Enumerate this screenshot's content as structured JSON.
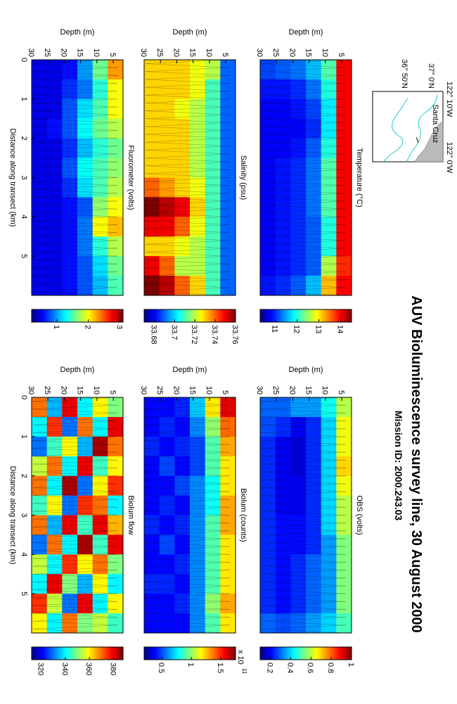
{
  "title": "AUV Bioluminescence survey line, 30 August 2000",
  "subtitle": "Mission ID: 2000.243.03",
  "map": {
    "lon_labels": [
      "122° 10'W",
      "122° 0'W"
    ],
    "lat_labels": [
      "37° 0'N",
      "36° 50'N"
    ],
    "place": "Santa Cruz"
  },
  "chart_data": [
    {
      "type": "heatmap",
      "title": "Temperature (°C)",
      "ylabel": "Depth (m)",
      "xlim": [
        0,
        6
      ],
      "ylim": [
        2,
        30
      ],
      "yticks": [
        5,
        10,
        15,
        20,
        25,
        30
      ],
      "colormap": "jet",
      "clim": [
        10.3,
        14.5
      ],
      "cticks": [
        11,
        12,
        13,
        14
      ],
      "z": [
        [
          14,
          14,
          14,
          14,
          14,
          14,
          14,
          14,
          14,
          14,
          13.8,
          14
        ],
        [
          12.2,
          12,
          11.8,
          11.8,
          12,
          12.2,
          12.2,
          12.2,
          12,
          12,
          12.6,
          13.2
        ],
        [
          11.6,
          11.3,
          11.1,
          11,
          11.2,
          11.3,
          11.3,
          11.3,
          11.2,
          11.2,
          11.2,
          11.6
        ],
        [
          11.3,
          11,
          10.9,
          10.8,
          10.9,
          11,
          11,
          11,
          11,
          11,
          11,
          11.2
        ],
        [
          11.2,
          10.9,
          10.8,
          10.8,
          10.8,
          10.9,
          10.9,
          10.9,
          10.9,
          10.9,
          10.9,
          11
        ],
        [
          11.1,
          10.9,
          10.8,
          10.8,
          10.8,
          10.8,
          10.8,
          10.8,
          10.8,
          10.8,
          10.8,
          10.9
        ]
      ]
    },
    {
      "type": "heatmap",
      "title": "OBS (volts)",
      "ylabel": "Depth (m)",
      "xlim": [
        0,
        6
      ],
      "ylim": [
        2,
        30
      ],
      "yticks": [
        5,
        10,
        15,
        20,
        25,
        30
      ],
      "colormap": "jet",
      "clim": [
        0.1,
        1
      ],
      "cticks": [
        0.2,
        0.4,
        0.6,
        0.8,
        1
      ],
      "z": [
        [
          0.6,
          0.65,
          0.65,
          0.7,
          0.65,
          0.6,
          0.6,
          0.55,
          0.55,
          0.55,
          0.55,
          0.5
        ],
        [
          0.45,
          0.4,
          0.4,
          0.4,
          0.4,
          0.4,
          0.4,
          0.35,
          0.35,
          0.35,
          0.35,
          0.4
        ],
        [
          0.35,
          0.25,
          0.25,
          0.25,
          0.25,
          0.25,
          0.25,
          0.25,
          0.3,
          0.3,
          0.3,
          0.35
        ],
        [
          0.35,
          0.2,
          0.18,
          0.18,
          0.2,
          0.2,
          0.22,
          0.22,
          0.25,
          0.25,
          0.25,
          0.3
        ],
        [
          0.3,
          0.25,
          0.2,
          0.2,
          0.2,
          0.2,
          0.22,
          0.22,
          0.22,
          0.22,
          0.22,
          0.28
        ],
        [
          0.3,
          0.28,
          0.25,
          0.25,
          0.25,
          0.25,
          0.25,
          0.25,
          0.25,
          0.25,
          0.25,
          0.3
        ]
      ]
    },
    {
      "type": "heatmap",
      "title": "Salinity (psu)",
      "ylabel": "Depth (m)",
      "xlim": [
        0,
        6
      ],
      "ylim": [
        2,
        30
      ],
      "yticks": [
        5,
        10,
        15,
        20,
        25,
        30
      ],
      "colormap": "jet",
      "clim": [
        33.67,
        33.76
      ],
      "cticks": [
        33.68,
        33.7,
        33.72,
        33.74,
        33.76
      ],
      "z": [
        [
          33.69,
          33.69,
          33.69,
          33.69,
          33.69,
          33.69,
          33.69,
          33.69,
          33.69,
          33.69,
          33.69,
          33.69
        ],
        [
          33.72,
          33.71,
          33.71,
          33.71,
          33.71,
          33.71,
          33.71,
          33.71,
          33.71,
          33.71,
          33.71,
          33.71
        ],
        [
          33.725,
          33.725,
          33.72,
          33.72,
          33.72,
          33.72,
          33.725,
          33.73,
          33.725,
          33.72,
          33.72,
          33.73
        ],
        [
          33.73,
          33.73,
          33.725,
          33.73,
          33.73,
          33.73,
          33.73,
          33.75,
          33.74,
          33.725,
          33.72,
          33.74
        ],
        [
          33.73,
          33.73,
          33.73,
          33.73,
          33.73,
          33.73,
          33.735,
          33.755,
          33.75,
          33.73,
          33.74,
          33.755
        ],
        [
          33.73,
          33.73,
          33.73,
          33.73,
          33.73,
          33.73,
          33.74,
          33.76,
          33.75,
          33.73,
          33.75,
          33.76
        ]
      ]
    },
    {
      "type": "heatmap",
      "title": "Biolum (counts)",
      "ylabel": "Depth (m)",
      "xlim": [
        0,
        6
      ],
      "ylim": [
        2,
        30
      ],
      "yticks": [
        5,
        10,
        15,
        20,
        25,
        30
      ],
      "colormap": "jet",
      "clim": [
        0.2,
        1.75
      ],
      "cticks": [
        0.5,
        1,
        1.5
      ],
      "cmultiplier": "x 10",
      "cexponent": "11",
      "z": [
        [
          1.6,
          1.4,
          1.3,
          1.2,
          1.2,
          1.3,
          1.3,
          1.2,
          1.2,
          1.2,
          1.3,
          1.2
        ],
        [
          1.2,
          1,
          0.9,
          0.9,
          0.8,
          0.8,
          0.9,
          0.9,
          0.9,
          0.9,
          1,
          0.9
        ],
        [
          0.7,
          0.6,
          0.5,
          0.5,
          0.6,
          0.6,
          0.6,
          0.6,
          0.6,
          0.6,
          0.6,
          0.6
        ],
        [
          0.45,
          0.4,
          0.45,
          0.4,
          0.5,
          0.4,
          0.45,
          0.4,
          0.45,
          0.4,
          0.45,
          0.4
        ],
        [
          0.4,
          0.45,
          0.4,
          0.5,
          0.4,
          0.45,
          0.4,
          0.5,
          0.4,
          0.45,
          0.4,
          0.4
        ],
        [
          0.4,
          0.4,
          0.45,
          0.4,
          0.4,
          0.4,
          0.45,
          0.4,
          0.4,
          0.45,
          0.4,
          0.4
        ]
      ]
    },
    {
      "type": "heatmap",
      "title": "Fluorometer (volts)",
      "xlabel": "Distance along transect (km)",
      "ylabel": "Depth (m)",
      "xlim": [
        0,
        6
      ],
      "ylim": [
        2,
        30
      ],
      "xticks": [
        0,
        1,
        2,
        3,
        4,
        5
      ],
      "yticks": [
        5,
        10,
        15,
        20,
        25,
        30
      ],
      "colormap": "jet",
      "clim": [
        0.2,
        3.1
      ],
      "cticks": [
        1,
        2,
        3
      ],
      "z": [
        [
          2.3,
          2,
          2,
          1.8,
          1.6,
          1.7,
          1.8,
          2,
          2.2,
          1.8,
          1.6,
          1.5
        ],
        [
          1.6,
          1.4,
          1.5,
          1.6,
          1.4,
          1.5,
          1.5,
          1.7,
          2,
          1.4,
          1.2,
          1.1
        ],
        [
          1,
          0.9,
          1.2,
          1.3,
          1.1,
          1.3,
          1.2,
          0.8,
          0.9,
          0.9,
          0.8,
          0.8
        ],
        [
          0.6,
          0.7,
          0.8,
          0.8,
          0.7,
          0.8,
          0.7,
          0.6,
          0.6,
          0.6,
          0.6,
          0.6
        ],
        [
          0.5,
          0.5,
          0.5,
          0.6,
          0.5,
          0.5,
          0.5,
          0.5,
          0.5,
          0.5,
          0.5,
          0.5
        ],
        [
          0.5,
          0.5,
          0.5,
          0.5,
          0.5,
          0.5,
          0.5,
          0.5,
          0.5,
          0.5,
          0.5,
          0.5
        ]
      ]
    },
    {
      "type": "heatmap",
      "title": "Biolum flow",
      "xlabel": "Distance along transect (km)",
      "ylabel": "Depth (m)",
      "xlim": [
        0,
        6
      ],
      "ylim": [
        2,
        30
      ],
      "xticks": [
        0,
        1,
        2,
        3,
        4,
        5
      ],
      "yticks": [
        5,
        10,
        15,
        20,
        25,
        30
      ],
      "colormap": "jet",
      "clim": [
        312,
        388
      ],
      "cticks": [
        320,
        340,
        360,
        380
      ],
      "z": [
        [
          350,
          380,
          370,
          360,
          375,
          340,
          365,
          380,
          350,
          340,
          360,
          345
        ],
        [
          360,
          340,
          385,
          345,
          360,
          370,
          380,
          345,
          370,
          360,
          340,
          355
        ],
        [
          340,
          370,
          335,
          380,
          330,
          375,
          345,
          385,
          360,
          335,
          380,
          350
        ],
        [
          380,
          330,
          360,
          340,
          385,
          330,
          380,
          340,
          375,
          350,
          330,
          370
        ],
        [
          335,
          375,
          345,
          370,
          340,
          360,
          335,
          370,
          340,
          380,
          355,
          340
        ],
        [
          370,
          340,
          330,
          355,
          370,
          345,
          370,
          330,
          355,
          340,
          375,
          360
        ]
      ]
    }
  ]
}
